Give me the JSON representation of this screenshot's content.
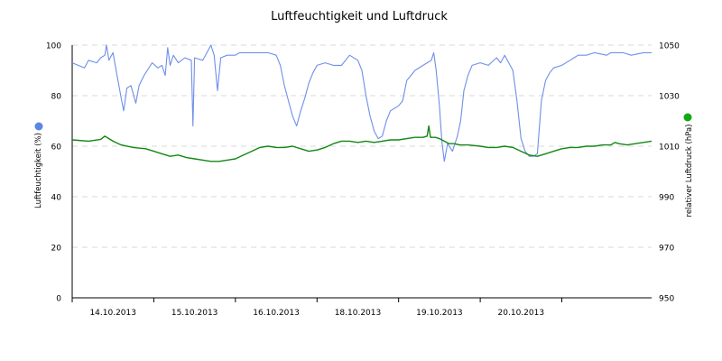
{
  "chart_data": {
    "type": "line",
    "title": "Luftfeuchtigkeit und Luftdruck",
    "x_tick_labels": [
      "14.10.2013",
      "15.10.2013",
      "16.10.2013",
      "18.10.2013",
      "19.10.2013",
      "20.10.2013"
    ],
    "y_left": {
      "label": "Luftfeuchtigkeit (%)",
      "range": [
        0,
        100
      ],
      "ticks": [
        0,
        20,
        40,
        60,
        80,
        100
      ]
    },
    "y_right": {
      "label": "relativer Luftdruck (hPa)",
      "range": [
        950,
        1050
      ],
      "ticks": [
        950,
        970,
        990,
        1010,
        1030,
        1050
      ]
    },
    "grid": true,
    "x_range": [
      0,
      7.1
    ],
    "series": [
      {
        "axis": "left",
        "color": "#6f8fe8",
        "marker_color": "#5b86e5",
        "points": [
          [
            0.0,
            93
          ],
          [
            0.15,
            91
          ],
          [
            0.2,
            94
          ],
          [
            0.3,
            93
          ],
          [
            0.35,
            95
          ],
          [
            0.4,
            96
          ],
          [
            0.42,
            100
          ],
          [
            0.45,
            94
          ],
          [
            0.5,
            97
          ],
          [
            0.55,
            88
          ],
          [
            0.6,
            79
          ],
          [
            0.63,
            74
          ],
          [
            0.67,
            83
          ],
          [
            0.72,
            84
          ],
          [
            0.78,
            77
          ],
          [
            0.82,
            84
          ],
          [
            0.88,
            88
          ],
          [
            0.92,
            90
          ],
          [
            0.98,
            93
          ],
          [
            1.05,
            91
          ],
          [
            1.1,
            92
          ],
          [
            1.14,
            88
          ],
          [
            1.17,
            99
          ],
          [
            1.2,
            92
          ],
          [
            1.24,
            96
          ],
          [
            1.3,
            93
          ],
          [
            1.38,
            95
          ],
          [
            1.46,
            94
          ],
          [
            1.48,
            68
          ],
          [
            1.5,
            95
          ],
          [
            1.6,
            94
          ],
          [
            1.7,
            100
          ],
          [
            1.74,
            96
          ],
          [
            1.78,
            82
          ],
          [
            1.82,
            95
          ],
          [
            1.9,
            96
          ],
          [
            2.0,
            96
          ],
          [
            2.05,
            97
          ],
          [
            2.4,
            97
          ],
          [
            2.5,
            96
          ],
          [
            2.55,
            92
          ],
          [
            2.6,
            84
          ],
          [
            2.65,
            78
          ],
          [
            2.7,
            72
          ],
          [
            2.75,
            68
          ],
          [
            2.8,
            74
          ],
          [
            2.85,
            79
          ],
          [
            2.9,
            85
          ],
          [
            2.95,
            89
          ],
          [
            3.0,
            92
          ],
          [
            3.1,
            93
          ],
          [
            3.2,
            92
          ],
          [
            3.3,
            92
          ],
          [
            3.4,
            96
          ],
          [
            3.5,
            94
          ],
          [
            3.55,
            90
          ],
          [
            3.6,
            80
          ],
          [
            3.65,
            72
          ],
          [
            3.7,
            66
          ],
          [
            3.75,
            63
          ],
          [
            3.8,
            64
          ],
          [
            3.85,
            70
          ],
          [
            3.9,
            74
          ],
          [
            4.0,
            76
          ],
          [
            4.05,
            78
          ],
          [
            4.1,
            86
          ],
          [
            4.15,
            88
          ],
          [
            4.2,
            90
          ],
          [
            4.3,
            92
          ],
          [
            4.35,
            93
          ],
          [
            4.4,
            94
          ],
          [
            4.43,
            97
          ],
          [
            4.46,
            90
          ],
          [
            4.5,
            76
          ],
          [
            4.53,
            62
          ],
          [
            4.56,
            54
          ],
          [
            4.6,
            61
          ],
          [
            4.66,
            58
          ],
          [
            4.72,
            64
          ],
          [
            4.76,
            70
          ],
          [
            4.8,
            82
          ],
          [
            4.85,
            88
          ],
          [
            4.9,
            92
          ],
          [
            5.0,
            93
          ],
          [
            5.1,
            92
          ],
          [
            5.2,
            95
          ],
          [
            5.25,
            93
          ],
          [
            5.3,
            96
          ],
          [
            5.4,
            90
          ],
          [
            5.45,
            78
          ],
          [
            5.5,
            63
          ],
          [
            5.55,
            58
          ],
          [
            5.6,
            56
          ],
          [
            5.65,
            56
          ],
          [
            5.7,
            57
          ],
          [
            5.75,
            78
          ],
          [
            5.8,
            86
          ],
          [
            5.85,
            89
          ],
          [
            5.9,
            91
          ],
          [
            6.0,
            92
          ],
          [
            6.1,
            94
          ],
          [
            6.2,
            96
          ],
          [
            6.3,
            96
          ],
          [
            6.4,
            97
          ],
          [
            6.55,
            96
          ],
          [
            6.6,
            97
          ],
          [
            6.75,
            97
          ],
          [
            6.85,
            96
          ],
          [
            7.0,
            97
          ],
          [
            7.1,
            97
          ]
        ]
      },
      {
        "axis": "right",
        "color": "#118811",
        "marker_color": "#11a811",
        "points": [
          [
            0.0,
            1012.5
          ],
          [
            0.2,
            1012
          ],
          [
            0.35,
            1012.7
          ],
          [
            0.4,
            1014
          ],
          [
            0.45,
            1013
          ],
          [
            0.5,
            1012
          ],
          [
            0.6,
            1010.5
          ],
          [
            0.75,
            1009.5
          ],
          [
            0.9,
            1009
          ],
          [
            1.0,
            1008
          ],
          [
            1.1,
            1007
          ],
          [
            1.2,
            1006
          ],
          [
            1.3,
            1006.5
          ],
          [
            1.4,
            1005.5
          ],
          [
            1.5,
            1005
          ],
          [
            1.6,
            1004.5
          ],
          [
            1.7,
            1004
          ],
          [
            1.8,
            1004
          ],
          [
            1.9,
            1004.5
          ],
          [
            2.0,
            1005
          ],
          [
            2.1,
            1006.5
          ],
          [
            2.2,
            1008
          ],
          [
            2.3,
            1009.5
          ],
          [
            2.4,
            1010
          ],
          [
            2.5,
            1009.5
          ],
          [
            2.6,
            1009.5
          ],
          [
            2.7,
            1010
          ],
          [
            2.8,
            1009
          ],
          [
            2.9,
            1008
          ],
          [
            3.0,
            1008.5
          ],
          [
            3.1,
            1009.5
          ],
          [
            3.2,
            1011
          ],
          [
            3.3,
            1012
          ],
          [
            3.4,
            1012
          ],
          [
            3.5,
            1011.5
          ],
          [
            3.6,
            1012
          ],
          [
            3.7,
            1011.5
          ],
          [
            3.8,
            1012
          ],
          [
            3.9,
            1012.5
          ],
          [
            4.0,
            1012.5
          ],
          [
            4.1,
            1013
          ],
          [
            4.2,
            1013.5
          ],
          [
            4.3,
            1013.5
          ],
          [
            4.35,
            1014
          ],
          [
            4.37,
            1018
          ],
          [
            4.39,
            1013.5
          ],
          [
            4.45,
            1013.5
          ],
          [
            4.5,
            1013
          ],
          [
            4.56,
            1012
          ],
          [
            4.62,
            1011
          ],
          [
            4.68,
            1011
          ],
          [
            4.75,
            1010.5
          ],
          [
            4.85,
            1010.5
          ],
          [
            5.0,
            1010
          ],
          [
            5.1,
            1009.5
          ],
          [
            5.2,
            1009.5
          ],
          [
            5.3,
            1010
          ],
          [
            5.4,
            1009.5
          ],
          [
            5.5,
            1008
          ],
          [
            5.6,
            1006.5
          ],
          [
            5.7,
            1006
          ],
          [
            5.8,
            1007
          ],
          [
            5.9,
            1008
          ],
          [
            6.0,
            1009
          ],
          [
            6.1,
            1009.5
          ],
          [
            6.2,
            1009.5
          ],
          [
            6.3,
            1010
          ],
          [
            6.4,
            1010
          ],
          [
            6.5,
            1010.5
          ],
          [
            6.6,
            1010.5
          ],
          [
            6.65,
            1011.5
          ],
          [
            6.7,
            1011
          ],
          [
            6.8,
            1010.5
          ],
          [
            6.9,
            1011
          ],
          [
            7.0,
            1011.5
          ],
          [
            7.1,
            1012
          ]
        ]
      }
    ]
  }
}
